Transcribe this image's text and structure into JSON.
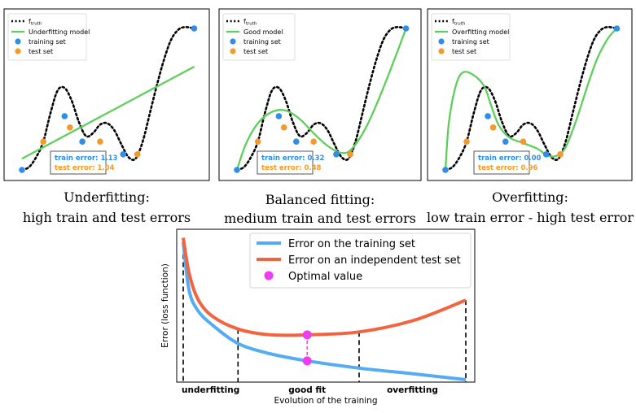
{
  "colors": {
    "truth": "#000000",
    "model": "#5dcf5b",
    "train": "#2f8fe6",
    "test": "#f59a2a",
    "bottom_train": "#56acf2",
    "bottom_test": "#f2643f",
    "optimal": "#f03cf0"
  },
  "legend_labels": {
    "truth_main": "f",
    "truth_sub": "truth",
    "training": "training set",
    "test": "test set"
  },
  "panels": [
    {
      "id": "underfitting",
      "model_label": "Underfitting model",
      "train_error_text": "train error: 1.13",
      "test_error_text": "test error: 1.04",
      "train_error": 1.13,
      "test_error": 1.04,
      "caption_line1": "Underfitting:",
      "caption_line2": "high train and test errors"
    },
    {
      "id": "balanced",
      "model_label": "Good model",
      "train_error_text": "train error: 0.32",
      "test_error_text": "test error: 0.48",
      "train_error": 0.32,
      "test_error": 0.48,
      "caption_line1": "Balanced fitting:",
      "caption_line2": "medium train and test errors"
    },
    {
      "id": "overfitting",
      "model_label": "Overfitting model",
      "train_error_text": "train error: 0.00",
      "test_error_text": "test error: 0.96",
      "train_error": 0.0,
      "test_error": 0.96,
      "caption_line1": "Overfitting:",
      "caption_line2": "low train error - high test error"
    }
  ],
  "chart_data": [
    {
      "type": "line",
      "panel": "underfitting",
      "series": [
        {
          "name": "f truth",
          "style": "dotted"
        },
        {
          "name": "Underfitting model"
        },
        {
          "name": "training set",
          "marker": "dot",
          "x": [
            0.0,
            0.24,
            0.34,
            0.57,
            0.97
          ],
          "y": [
            0.0,
            0.38,
            0.2,
            0.11,
            1.0
          ]
        },
        {
          "name": "test set",
          "marker": "dot",
          "x": [
            0.12,
            0.27,
            0.44,
            0.65
          ],
          "y": [
            0.2,
            0.3,
            0.2,
            0.11
          ]
        }
      ]
    },
    {
      "type": "line",
      "panel": "balanced",
      "series": [
        {
          "name": "f truth",
          "style": "dotted"
        },
        {
          "name": "Good model"
        },
        {
          "name": "training set",
          "marker": "dot",
          "x": [
            0.0,
            0.24,
            0.34,
            0.57,
            0.97
          ],
          "y": [
            0.0,
            0.38,
            0.2,
            0.11,
            1.0
          ]
        },
        {
          "name": "test set",
          "marker": "dot",
          "x": [
            0.12,
            0.27,
            0.44,
            0.65
          ],
          "y": [
            0.2,
            0.3,
            0.2,
            0.11
          ]
        }
      ]
    },
    {
      "type": "line",
      "panel": "overfitting",
      "series": [
        {
          "name": "f truth",
          "style": "dotted"
        },
        {
          "name": "Overfitting model"
        },
        {
          "name": "training set",
          "marker": "dot",
          "x": [
            0.0,
            0.24,
            0.34,
            0.57,
            0.97
          ],
          "y": [
            0.0,
            0.38,
            0.2,
            0.11,
            1.0
          ]
        },
        {
          "name": "test set",
          "marker": "dot",
          "x": [
            0.12,
            0.27,
            0.44,
            0.65
          ],
          "y": [
            0.2,
            0.3,
            0.2,
            0.11
          ]
        }
      ]
    },
    {
      "type": "line",
      "panel": "training-evolution",
      "xlabel": "Evolution of the training",
      "ylabel": "Error (loss function)",
      "x_region_labels": [
        "underfitting",
        "good fit",
        "overfitting"
      ],
      "x_markers": [
        0.0,
        0.19,
        0.43,
        0.61,
        0.98
      ],
      "optimal_x": 0.43,
      "series": [
        {
          "name": "Error on the training set",
          "x": [
            0.0,
            0.02,
            0.05,
            0.1,
            0.19,
            0.3,
            0.43,
            0.61,
            0.8,
            0.98
          ],
          "y": [
            0.95,
            0.62,
            0.48,
            0.38,
            0.25,
            0.18,
            0.13,
            0.08,
            0.04,
            0.0
          ]
        },
        {
          "name": "Error on an independent test set",
          "x": [
            0.0,
            0.02,
            0.05,
            0.1,
            0.19,
            0.3,
            0.43,
            0.61,
            0.8,
            0.98
          ],
          "y": [
            0.98,
            0.74,
            0.56,
            0.44,
            0.35,
            0.31,
            0.31,
            0.33,
            0.41,
            0.55
          ]
        },
        {
          "name": "Optimal value",
          "marker": "dot",
          "x": [
            0.43,
            0.43
          ],
          "y": [
            0.31,
            0.13
          ]
        }
      ],
      "legend_position": "top-right"
    }
  ]
}
